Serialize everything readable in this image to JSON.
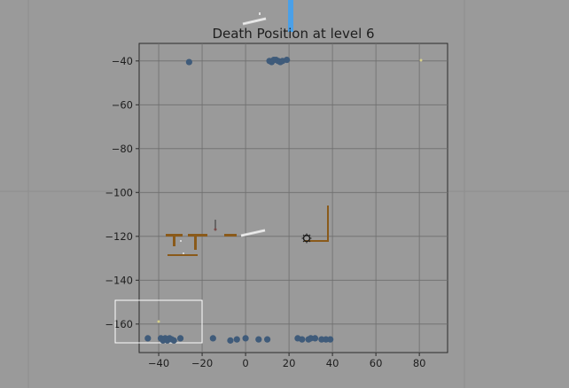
{
  "chart_data": {
    "type": "scatter",
    "title": "Death Position at level 6",
    "xlabel": "",
    "ylabel": "",
    "xlim": [
      -49,
      93
    ],
    "ylim": [
      -173,
      -32
    ],
    "x_ticks": [
      -40,
      -20,
      0,
      20,
      40,
      60,
      80
    ],
    "y_ticks": [
      -40,
      -60,
      -80,
      -100,
      -120,
      -140,
      -160
    ],
    "grid": true,
    "point_color": "#3f5b7a",
    "points": [
      {
        "x": -26,
        "y": -40.5
      },
      {
        "x": 11,
        "y": -40
      },
      {
        "x": 12,
        "y": -40.5
      },
      {
        "x": 13,
        "y": -39.5
      },
      {
        "x": 14,
        "y": -39.5
      },
      {
        "x": 15,
        "y": -40
      },
      {
        "x": 16,
        "y": -40.5
      },
      {
        "x": 17,
        "y": -40
      },
      {
        "x": 19,
        "y": -39.5
      },
      {
        "x": -45,
        "y": -166.5
      },
      {
        "x": -39,
        "y": -166.5
      },
      {
        "x": -38,
        "y": -167.5
      },
      {
        "x": -37,
        "y": -166.5
      },
      {
        "x": -36,
        "y": -167.5
      },
      {
        "x": -35,
        "y": -166.5
      },
      {
        "x": -34,
        "y": -167
      },
      {
        "x": -33,
        "y": -167.5
      },
      {
        "x": -30,
        "y": -166.5
      },
      {
        "x": -15,
        "y": -166.5
      },
      {
        "x": -7,
        "y": -167.5
      },
      {
        "x": -4,
        "y": -167
      },
      {
        "x": 0,
        "y": -166.5
      },
      {
        "x": 6,
        "y": -167
      },
      {
        "x": 10,
        "y": -167
      },
      {
        "x": 24,
        "y": -166.5
      },
      {
        "x": 26,
        "y": -167
      },
      {
        "x": 29,
        "y": -167
      },
      {
        "x": 30,
        "y": -166.5
      },
      {
        "x": 32,
        "y": -166.5
      },
      {
        "x": 35,
        "y": -167
      },
      {
        "x": 37,
        "y": -167
      },
      {
        "x": 39,
        "y": -167
      }
    ]
  },
  "level_overlay": {
    "platform_color": "#8a5a1a",
    "sword_color": "#d8d8d8",
    "flag_color": "#4aa0e8",
    "goal_icon": "sun-icon"
  }
}
